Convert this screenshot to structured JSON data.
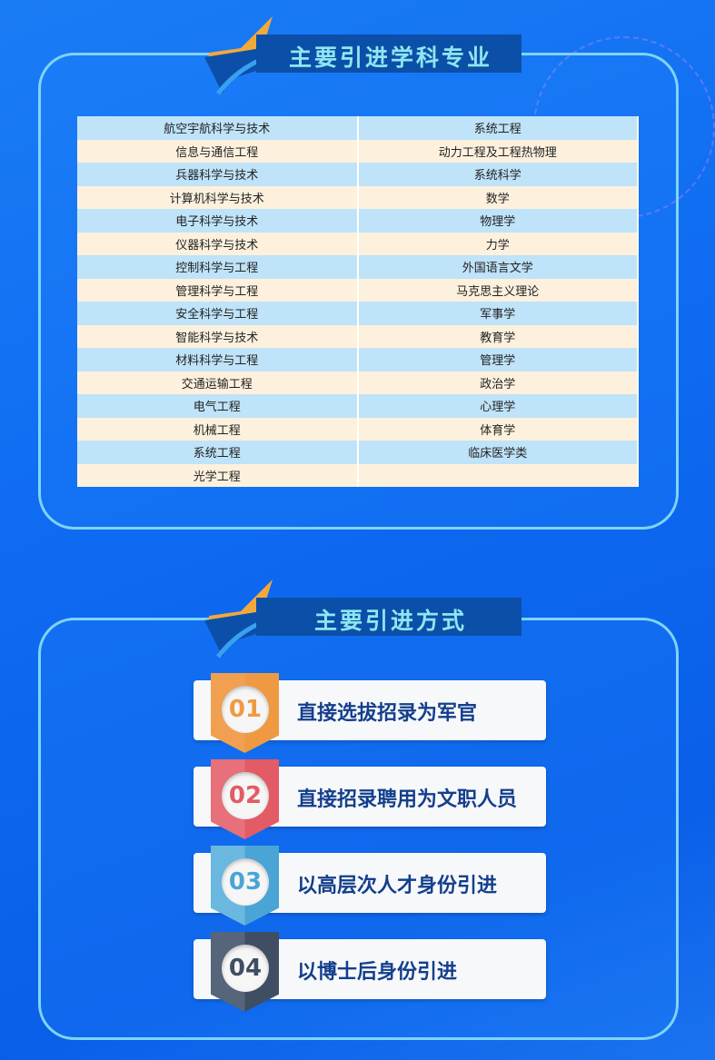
{
  "section1": {
    "title": "主要引进学科专业",
    "rows": [
      [
        "航空宇航科学与技术",
        "系统工程"
      ],
      [
        "信息与通信工程",
        "动力工程及工程热物理"
      ],
      [
        "兵器科学与技术",
        "系统科学"
      ],
      [
        "计算机科学与技术",
        "数学"
      ],
      [
        "电子科学与技术",
        "物理学"
      ],
      [
        "仪器科学与技术",
        "力学"
      ],
      [
        "控制科学与工程",
        "外国语言文学"
      ],
      [
        "管理科学与工程",
        "马克思主义理论"
      ],
      [
        "安全科学与工程",
        "军事学"
      ],
      [
        "智能科学与技术",
        "教育学"
      ],
      [
        "材料科学与工程",
        "管理学"
      ],
      [
        "交通运输工程",
        "政治学"
      ],
      [
        "电气工程",
        "心理学"
      ],
      [
        "机械工程",
        "体育学"
      ],
      [
        "系统工程",
        "临床医学类"
      ],
      [
        "光学工程",
        ""
      ]
    ]
  },
  "section2": {
    "title": "主要引进方式",
    "items": [
      {
        "num": "01",
        "label": "直接选拔招录为军官",
        "color": "#f0a050",
        "dark": "#ef9a42"
      },
      {
        "num": "02",
        "label": "直接招录聘用为文职人员",
        "color": "#e8707a",
        "dark": "#e35b65"
      },
      {
        "num": "03",
        "label": "以高层次人才身份引进",
        "color": "#6ab8e0",
        "dark": "#4aa4d6"
      },
      {
        "num": "04",
        "label": "以博士后身份引进",
        "color": "#56657a",
        "dark": "#3f4e63"
      }
    ]
  }
}
